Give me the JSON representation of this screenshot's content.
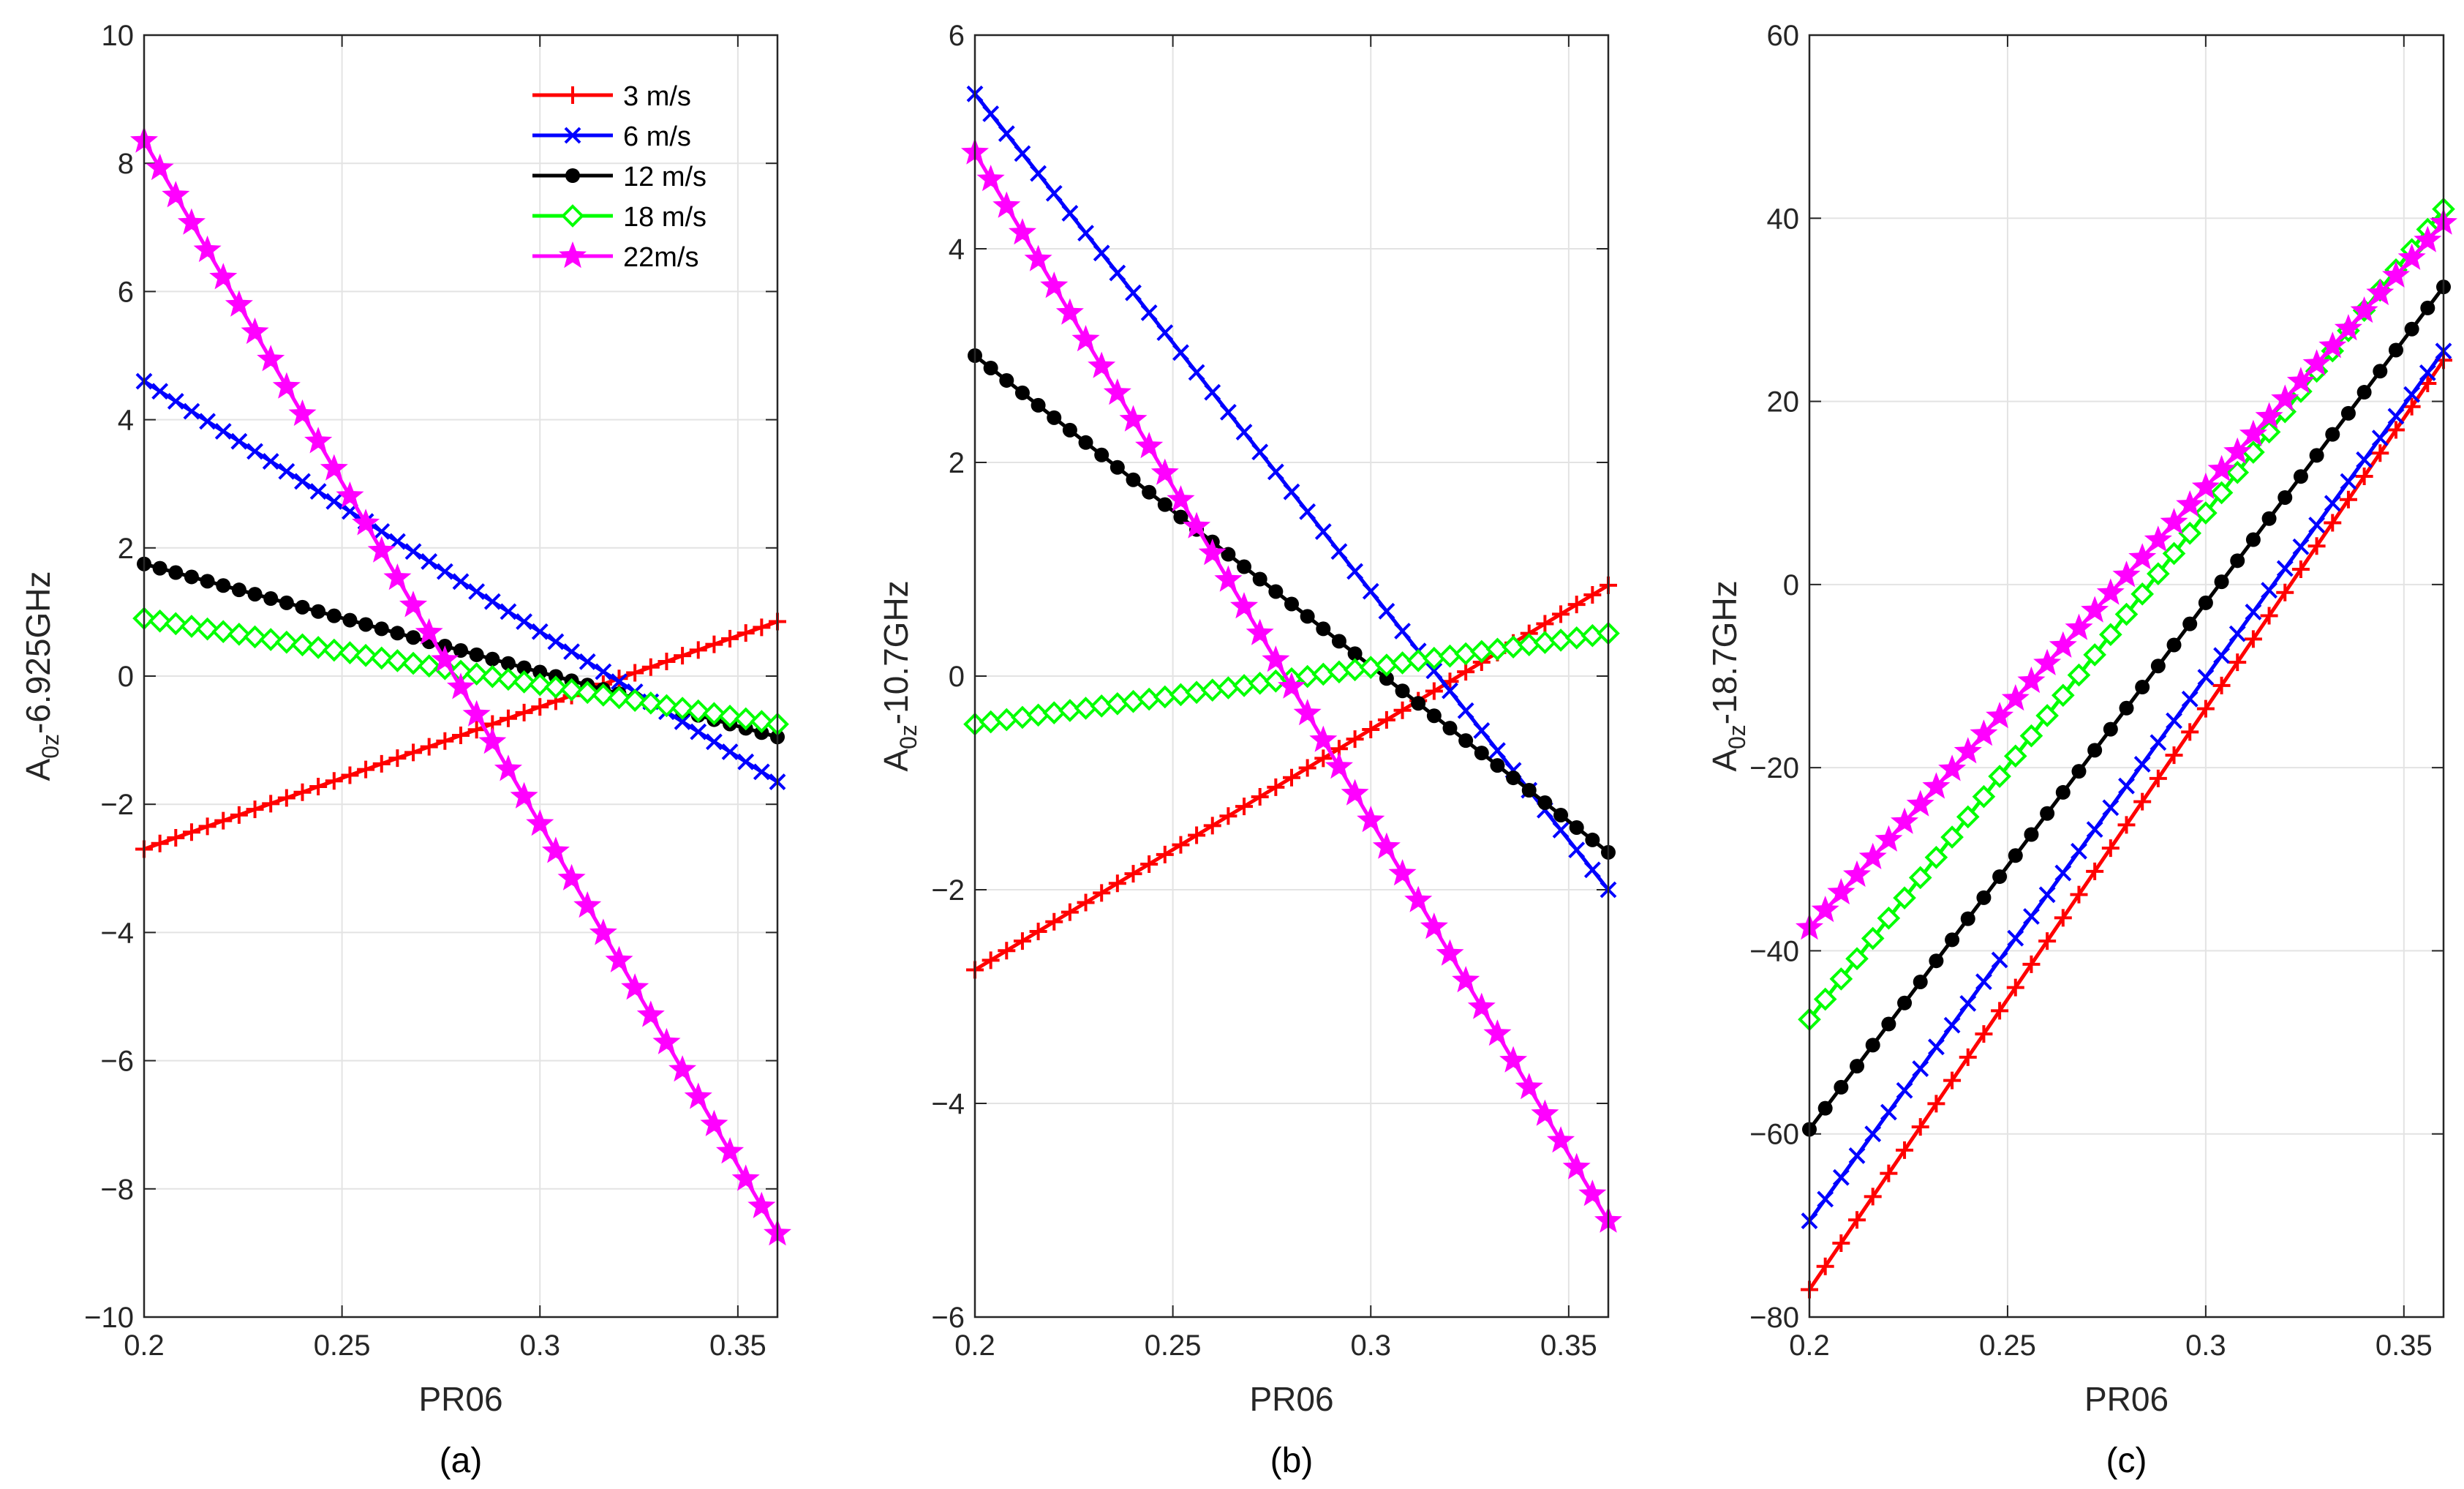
{
  "colors": {
    "3 m/s": "#ff0000",
    "6 m/s": "#0000ff",
    "12 m/s": "#000000",
    "18 m/s": "#00ff00",
    "22m/s": "#ff00ff"
  },
  "chart_data": [
    {
      "type": "line",
      "panel_label": "(a)",
      "xlabel": "PR06",
      "ylabel_main": "A",
      "ylabel_sub": "0z",
      "ylabel_rest": "-6.925GHz",
      "xlim": [
        0.2,
        0.36
      ],
      "ylim": [
        -10,
        10
      ],
      "xticks": [
        "0.2",
        "0.25",
        "0.3",
        "0.35"
      ],
      "yticks": [
        "−10",
        "−8",
        "−6",
        "−4",
        "−2",
        "0",
        "2",
        "4",
        "6",
        "8",
        "10"
      ],
      "grid": true,
      "legend": {
        "position": "top-right",
        "entries": [
          "3 m/s",
          "6 m/s",
          "12 m/s",
          "18 m/s",
          "22m/s"
        ]
      },
      "series": [
        {
          "name": "3 m/s",
          "marker": "plus",
          "start": [
            0.2,
            -2.7
          ],
          "end": [
            0.36,
            0.85
          ]
        },
        {
          "name": "6 m/s",
          "marker": "x",
          "start": [
            0.2,
            4.6
          ],
          "end": [
            0.36,
            -1.65
          ]
        },
        {
          "name": "12 m/s",
          "marker": "dot",
          "start": [
            0.2,
            1.75
          ],
          "end": [
            0.36,
            -0.95
          ]
        },
        {
          "name": "18 m/s",
          "marker": "diamond",
          "start": [
            0.2,
            0.9
          ],
          "end": [
            0.36,
            -0.75
          ]
        },
        {
          "name": "22m/s",
          "marker": "star",
          "start": [
            0.2,
            8.35
          ],
          "end": [
            0.36,
            -8.7
          ]
        }
      ]
    },
    {
      "type": "line",
      "panel_label": "(b)",
      "xlabel": "PR06",
      "ylabel_main": "A",
      "ylabel_sub": "0z",
      "ylabel_rest": "-10.7GHz",
      "xlim": [
        0.2,
        0.36
      ],
      "ylim": [
        -6,
        6
      ],
      "xticks": [
        "0.2",
        "0.25",
        "0.3",
        "0.35"
      ],
      "yticks": [
        "−6",
        "−4",
        "−2",
        "0",
        "2",
        "4",
        "6"
      ],
      "grid": true,
      "series": [
        {
          "name": "3 m/s",
          "marker": "plus",
          "start": [
            0.2,
            -2.75
          ],
          "end": [
            0.36,
            0.85
          ]
        },
        {
          "name": "6 m/s",
          "marker": "x",
          "start": [
            0.2,
            5.45
          ],
          "end": [
            0.36,
            -2.0
          ]
        },
        {
          "name": "12 m/s",
          "marker": "dot",
          "start": [
            0.2,
            3.0
          ],
          "end": [
            0.36,
            -1.65
          ]
        },
        {
          "name": "18 m/s",
          "marker": "diamond",
          "start": [
            0.2,
            -0.45
          ],
          "end": [
            0.36,
            0.4
          ]
        },
        {
          "name": "22m/s",
          "marker": "star",
          "start": [
            0.2,
            4.9
          ],
          "end": [
            0.36,
            -5.1
          ]
        }
      ]
    },
    {
      "type": "line",
      "panel_label": "(c)",
      "xlabel": "PR06",
      "ylabel_main": "A",
      "ylabel_sub": "0z",
      "ylabel_rest": "-18.7GHz",
      "xlim": [
        0.2,
        0.36
      ],
      "ylim": [
        -80,
        60
      ],
      "xticks": [
        "0.2",
        "0.25",
        "0.3",
        "0.35"
      ],
      "yticks": [
        "−80",
        "−60",
        "−40",
        "−20",
        "0",
        "20",
        "40",
        "60"
      ],
      "grid": true,
      "series": [
        {
          "name": "3 m/s",
          "marker": "plus",
          "start": [
            0.2,
            -77
          ],
          "end": [
            0.36,
            24.5
          ]
        },
        {
          "name": "6 m/s",
          "marker": "x",
          "start": [
            0.2,
            -69.5
          ],
          "end": [
            0.36,
            25.5
          ]
        },
        {
          "name": "12 m/s",
          "marker": "dot",
          "start": [
            0.2,
            -59.5
          ],
          "end": [
            0.36,
            32.5
          ]
        },
        {
          "name": "18 m/s",
          "marker": "diamond",
          "start": [
            0.2,
            -47.5
          ],
          "end": [
            0.36,
            41
          ]
        },
        {
          "name": "22m/s",
          "marker": "star",
          "start": [
            0.2,
            -37.5
          ],
          "end": [
            0.36,
            39.5
          ]
        }
      ]
    }
  ]
}
